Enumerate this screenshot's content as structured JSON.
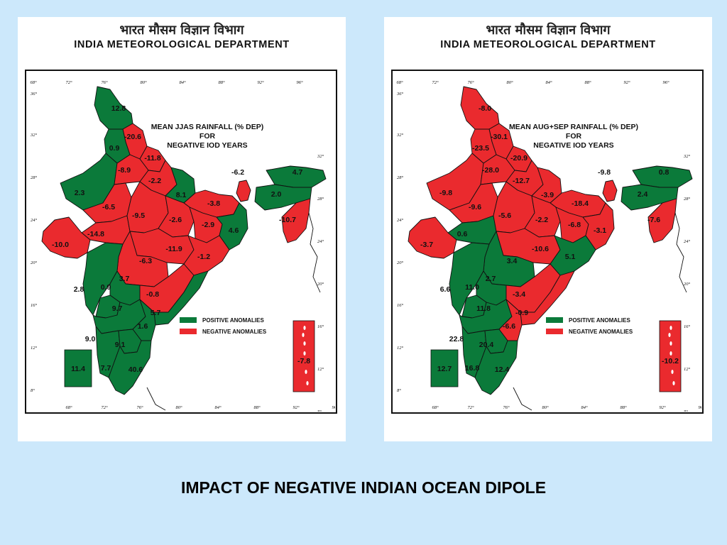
{
  "slide_title": "IMPACT OF NEGATIVE INDIAN OCEAN DIPOLE",
  "colors": {
    "positive": "#0b7a3a",
    "negative": "#ea2a2e",
    "background": "#cce8fb"
  },
  "maps": [
    {
      "header_hindi": "भारत मौसम विज्ञान विभाग",
      "header_english": "INDIA METEOROLOGICAL DEPARTMENT",
      "title_lines": [
        "MEAN JJAS RAINFALL (% DEP)",
        "FOR",
        "NEGATIVE IOD YEARS"
      ],
      "legend_positive": "POSITIVE ANOMALIES",
      "legend_negative": "NEGATIVE ANOMALIES",
      "lon_ticks": [
        "68°",
        "72°",
        "76°",
        "80°",
        "84°",
        "88°",
        "92°",
        "96°"
      ],
      "lat_ticks": [
        "36°",
        "32°",
        "28°",
        "24°",
        "20°",
        "16°",
        "12°",
        "8°"
      ],
      "region_values": {
        "jk": "12.8",
        "hp_pun": "-20.6",
        "w_raj": "0.9",
        "uk_hr": "-11.8",
        "raj": "2.3",
        "e_raj": "-8.9",
        "w_up": "-2.2",
        "e_up": "8.1",
        "bih": "-3.8",
        "sikkim": "-6.2",
        "ne_top": "4.7",
        "assam": "2.0",
        "ne_s": "-10.7",
        "guj": "-6.5",
        "mp_w": "-14.8",
        "saur": "-10.0",
        "mp_e": "-9.5",
        "chh_n": "-2.6",
        "jhar": "-2.9",
        "gwb": "4.6",
        "vid": "-11.9",
        "odi": "-1.2",
        "mar": "-6.3",
        "konkan": "2.8",
        "mm": "3.7",
        "mar_c": "0.9",
        "tel": "-0.8",
        "kar_n": "9.7",
        "ap": "5.7",
        "ray": "1.6",
        "kerala": "9.0",
        "tn_in": "9.1",
        "tn": "40.6",
        "lak": "7.7",
        "anda": "11.4",
        "nico": "-7.8"
      }
    },
    {
      "header_hindi": "भारत मौसम विज्ञान विभाग",
      "header_english": "INDIA METEOROLOGICAL DEPARTMENT",
      "title_lines": [
        "MEAN AUG+SEP RAINFALL (% DEP)",
        "FOR",
        "NEGATIVE IOD YEARS"
      ],
      "legend_positive": "POSITIVE ANOMALIES",
      "legend_negative": "NEGATIVE ANOMALIES",
      "lon_ticks": [
        "68°",
        "72°",
        "76°",
        "80°",
        "84°",
        "88°",
        "92°",
        "96°"
      ],
      "lat_ticks": [
        "36°",
        "32°",
        "28°",
        "24°",
        "20°",
        "16°",
        "12°",
        "8°"
      ],
      "region_values": {
        "jk": "-8.0",
        "hp_pun": "-30.1",
        "w_raj": "-23.5",
        "uk_hr": "-20.9",
        "raj": "-9.8",
        "e_raj": "-28.0",
        "w_up": "-12.7",
        "e_up": "-3.9",
        "bih": "-18.4",
        "sikkim": "-9.8",
        "ne_top": "0.8",
        "assam": "2.4",
        "ne_s": "-7.6",
        "guj": "-9.6",
        "mp_w": "0.6",
        "saur": "-3.7",
        "mp_e": "-5.6",
        "chh_n": "-2.2",
        "jhar": "-6.8",
        "gwb": "-3.1",
        "vid": "-10.6",
        "odi": "5.1",
        "mar": "3.4",
        "konkan": "6.6",
        "mm": "2.7",
        "mar_c": "11.0",
        "tel": "-3.4",
        "kar_n": "11.8",
        "ap": "-0.9",
        "ray": "-6.6",
        "kerala": "22.8",
        "tn_in": "20.4",
        "tn": "12.4",
        "lak": "16.8",
        "anda": "12.7",
        "nico": "-10.2"
      }
    }
  ]
}
